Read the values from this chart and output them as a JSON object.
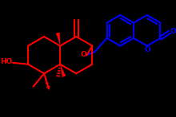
{
  "bg": "#000000",
  "red": "#ff0000",
  "blue": "#0000ff",
  "lw": 1.5,
  "figw": 2.2,
  "figh": 1.47,
  "dpi": 100,
  "xlim": [
    0,
    220
  ],
  "ylim": [
    0,
    147
  ]
}
